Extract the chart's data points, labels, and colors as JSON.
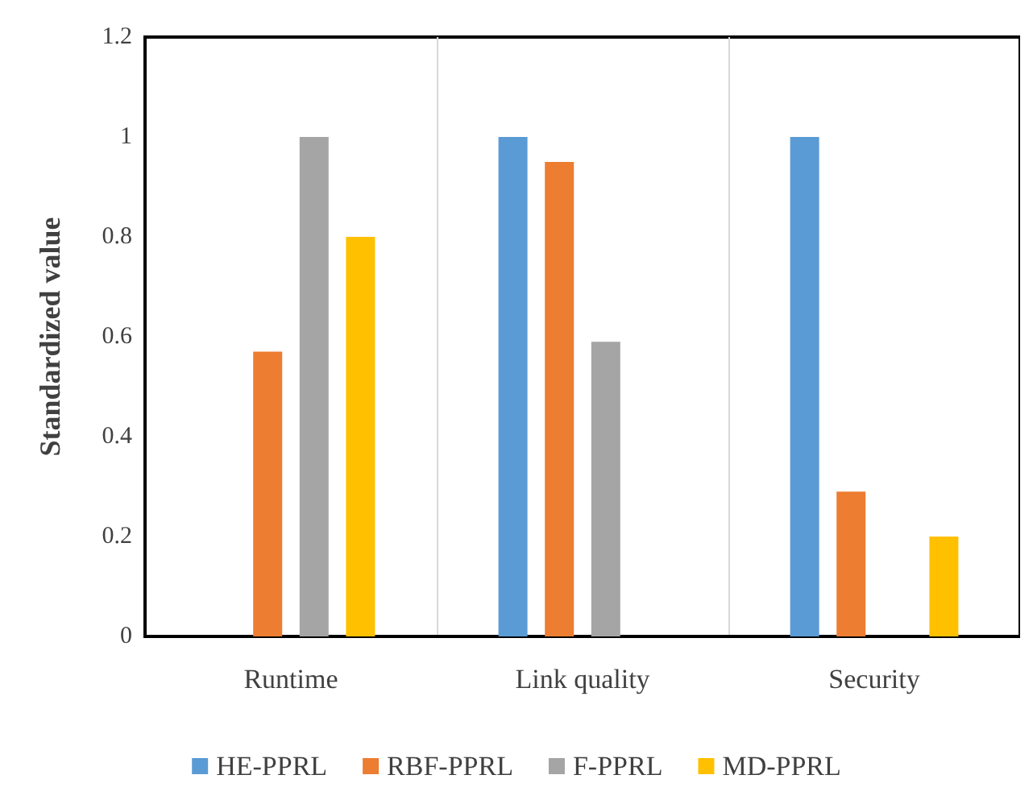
{
  "chart_data": {
    "type": "bar",
    "ylabel": "Standardized value",
    "categories": [
      "Runtime",
      "Link quality",
      "Security"
    ],
    "series": [
      {
        "name": "HE-PPRL",
        "color": "#5b9bd5",
        "values": [
          0,
          1,
          1
        ]
      },
      {
        "name": "RBF-PPRL",
        "color": "#ed7d31",
        "values": [
          0.57,
          0.95,
          0.29
        ]
      },
      {
        "name": "F-PPRL",
        "color": "#a5a5a5",
        "values": [
          1,
          0.59,
          0
        ]
      },
      {
        "name": "MD-PPRL",
        "color": "#ffc000",
        "values": [
          0.8,
          0,
          0.2
        ]
      }
    ],
    "ylim": [
      0,
      1.2
    ],
    "yticks": [
      0,
      0.2,
      0.4,
      0.6,
      0.8,
      1,
      1.2
    ],
    "grid": "x",
    "legend": "bottom"
  }
}
